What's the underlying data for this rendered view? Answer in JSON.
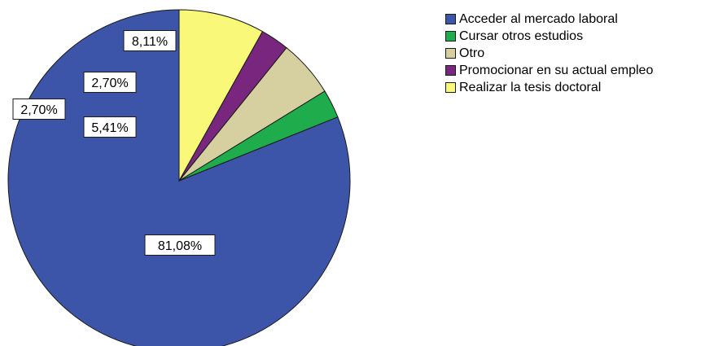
{
  "chart_data": {
    "type": "pie",
    "title": "",
    "start_angle_deg": 90,
    "direction": "counterclockwise",
    "legend_position": "right",
    "slices": [
      {
        "label": "Acceder al mercado laboral",
        "value": 81.08,
        "value_label": "81,08%",
        "color": "#3d55a8"
      },
      {
        "label": "Cursar otros estudios",
        "value": 2.7,
        "value_label": "2,70%",
        "color": "#1fac4d"
      },
      {
        "label": "Otro",
        "value": 5.41,
        "value_label": "5,41%",
        "color": "#d6cfa0"
      },
      {
        "label": "Promocionar en su actual empleo",
        "value": 2.7,
        "value_label": "2,70%",
        "color": "#78267e"
      },
      {
        "label": "Realizar la tesis doctoral",
        "value": 8.11,
        "value_label": "8,11%",
        "color": "#f9f878"
      }
    ]
  }
}
